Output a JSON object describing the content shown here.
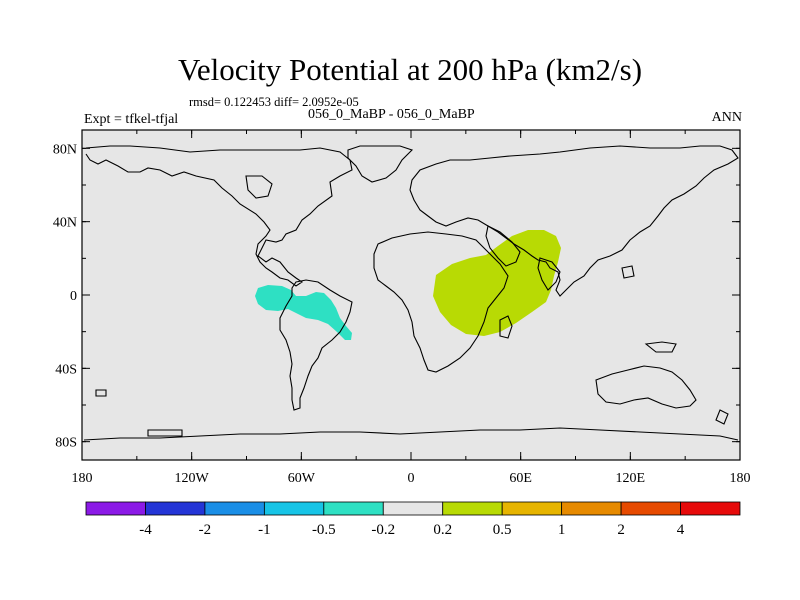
{
  "title": "Velocity Potential at 200 hPa (km2/s)",
  "stats": "rmsd= 0.122453 diff= 2.0952e-05",
  "experiment": "Expt = tfkel-tfjal",
  "runs": "056_0_MaBP - 056_0_MaBP",
  "season": "ANN",
  "map": {
    "projection": "cylindrical equidistant",
    "background_color": "#e6e6e6",
    "lon_range": [
      -180,
      180
    ],
    "lat_range": [
      -90,
      90
    ],
    "lat_ticks": [
      {
        "value": 80,
        "label": "80N"
      },
      {
        "value": 40,
        "label": "40N"
      },
      {
        "value": 0,
        "label": "0"
      },
      {
        "value": -40,
        "label": "40S"
      },
      {
        "value": -80,
        "label": "80S"
      }
    ],
    "lon_ticks": [
      {
        "value": -180,
        "label": "180"
      },
      {
        "value": -120,
        "label": "120W"
      },
      {
        "value": -60,
        "label": "60W"
      },
      {
        "value": 0,
        "label": "0"
      },
      {
        "value": 60,
        "label": "60E"
      },
      {
        "value": 120,
        "label": "120E"
      },
      {
        "value": 180,
        "label": "180"
      }
    ],
    "anomalies": [
      {
        "name": "south-america-anomaly",
        "range": "-0.5 to -0.2",
        "color": "#2ee0c3",
        "region": "western Atlantic / South America",
        "lon_center": -55,
        "lat_center": -5
      },
      {
        "name": "africa-anomaly",
        "range": "0.2 to 0.5",
        "color": "#b8da04",
        "region": "Africa / western Indian Ocean",
        "lon_center": 45,
        "lat_center": 5
      }
    ]
  },
  "colorbar": {
    "colors": [
      "#8b1ae6",
      "#2435d6",
      "#1a8ee6",
      "#17c4e6",
      "#2ee0c3",
      "#e6e6e6",
      "#b8da04",
      "#e6b400",
      "#e68a00",
      "#e64a00",
      "#e60a0a"
    ],
    "labels": [
      "-4",
      "-2",
      "-1",
      "-0.5",
      "-0.2",
      "0.2",
      "0.5",
      "1",
      "2",
      "4"
    ]
  }
}
